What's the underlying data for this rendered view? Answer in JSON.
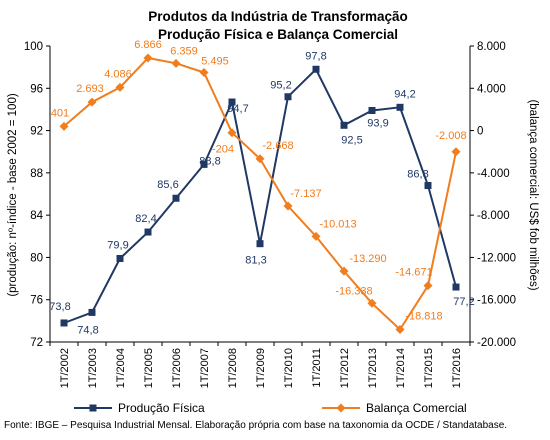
{
  "chart_data": {
    "type": "line",
    "title": "Produtos da Indústria de Transformação",
    "subtitle": "Produção Física e Balança Comercial",
    "categories": [
      "1T/2002",
      "1T/2003",
      "1T/2004",
      "1T/2005",
      "1T/2006",
      "1T/2007",
      "1T/2008",
      "1T/2009",
      "1T/2010",
      "1T/2011",
      "1T/2012",
      "1T/2013",
      "1T/2014",
      "1T/2015",
      "1T/2016"
    ],
    "ylabel_left": "(produção: nº-índice - base 2002 = 100)",
    "ylabel_right": "(balança comercial: US$ fob milhões)",
    "y_left": {
      "min": 72,
      "max": 100,
      "ticks": [
        "72",
        "76",
        "80",
        "84",
        "88",
        "92",
        "96",
        "100"
      ]
    },
    "y_right": {
      "min": -20000,
      "max": 8000,
      "ticks": [
        "-20.000",
        "-16.000",
        "-12.000",
        "-8.000",
        "-4.000",
        "0",
        "4.000",
        "8.000"
      ]
    },
    "grid": false,
    "legend_position": "bottom",
    "series": [
      {
        "name": "Produção Física",
        "axis": "left",
        "color": "#1f3864",
        "marker": "square",
        "values": [
          73.8,
          74.8,
          79.9,
          82.4,
          85.6,
          88.8,
          94.7,
          81.3,
          95.2,
          97.8,
          92.5,
          93.9,
          94.2,
          86.8,
          77.2
        ],
        "labels": [
          "73,8",
          "74,8",
          "79,9",
          "82,4",
          "85,6",
          "88,8",
          "94,7",
          "81,3",
          "95,2",
          "97,8",
          "92,5",
          "93,9",
          "94,2",
          "86,8",
          "77,2"
        ]
      },
      {
        "name": "Balança Comercial",
        "axis": "right",
        "color": "#f07d1e",
        "marker": "diamond",
        "values": [
          401,
          2693,
          4086,
          6866,
          6359,
          5495,
          -204,
          -2668,
          -7137,
          -10013,
          -13290,
          -16338,
          -18818,
          -14671,
          -2008
        ],
        "labels": [
          "401",
          "2.693",
          "4.086",
          "6.866",
          "6.359",
          "5.495",
          "-204",
          "-2.668",
          "-7.137",
          "-10.013",
          "-13.290",
          "-16.338",
          "-18.818",
          "-14.671",
          "-2.008"
        ]
      }
    ]
  },
  "source_text": "Fonte: IBGE – Pesquisa Industrial Mensal. Elaboração própria com base na taxonomia da OCDE / Standatabase."
}
